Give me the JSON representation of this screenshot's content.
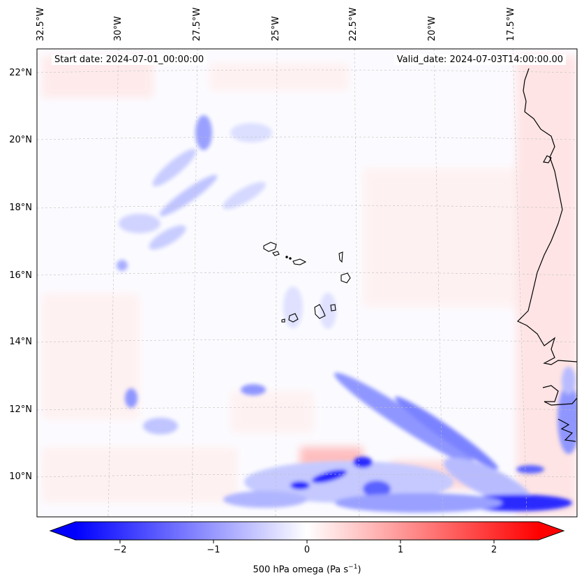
{
  "map": {
    "start_label": "Start date: 2024-07-01_00:00:00",
    "valid_label": "Valid_date: 2024-07-03T14:00:00.00",
    "lon_labels": [
      "32.5°W",
      "30°W",
      "27.5°W",
      "25°W",
      "22.5°W",
      "20°W",
      "17.5°W"
    ],
    "lat_labels": [
      "22°N",
      "20°N",
      "18°N",
      "16°N",
      "14°N",
      "12°N",
      "10°N"
    ],
    "colors": {
      "negative": "#0000ff",
      "positive": "#ff0000",
      "zero": "#ffffff",
      "coast": "#000000"
    }
  },
  "colorbar": {
    "ticks": [
      "−2",
      "−1",
      "0",
      "1",
      "2"
    ],
    "title_prefix": "500 hPa omega (Pa s",
    "title_exp": "−1",
    "title_suffix": ")",
    "min": -2.75,
    "max": 2.75
  }
}
